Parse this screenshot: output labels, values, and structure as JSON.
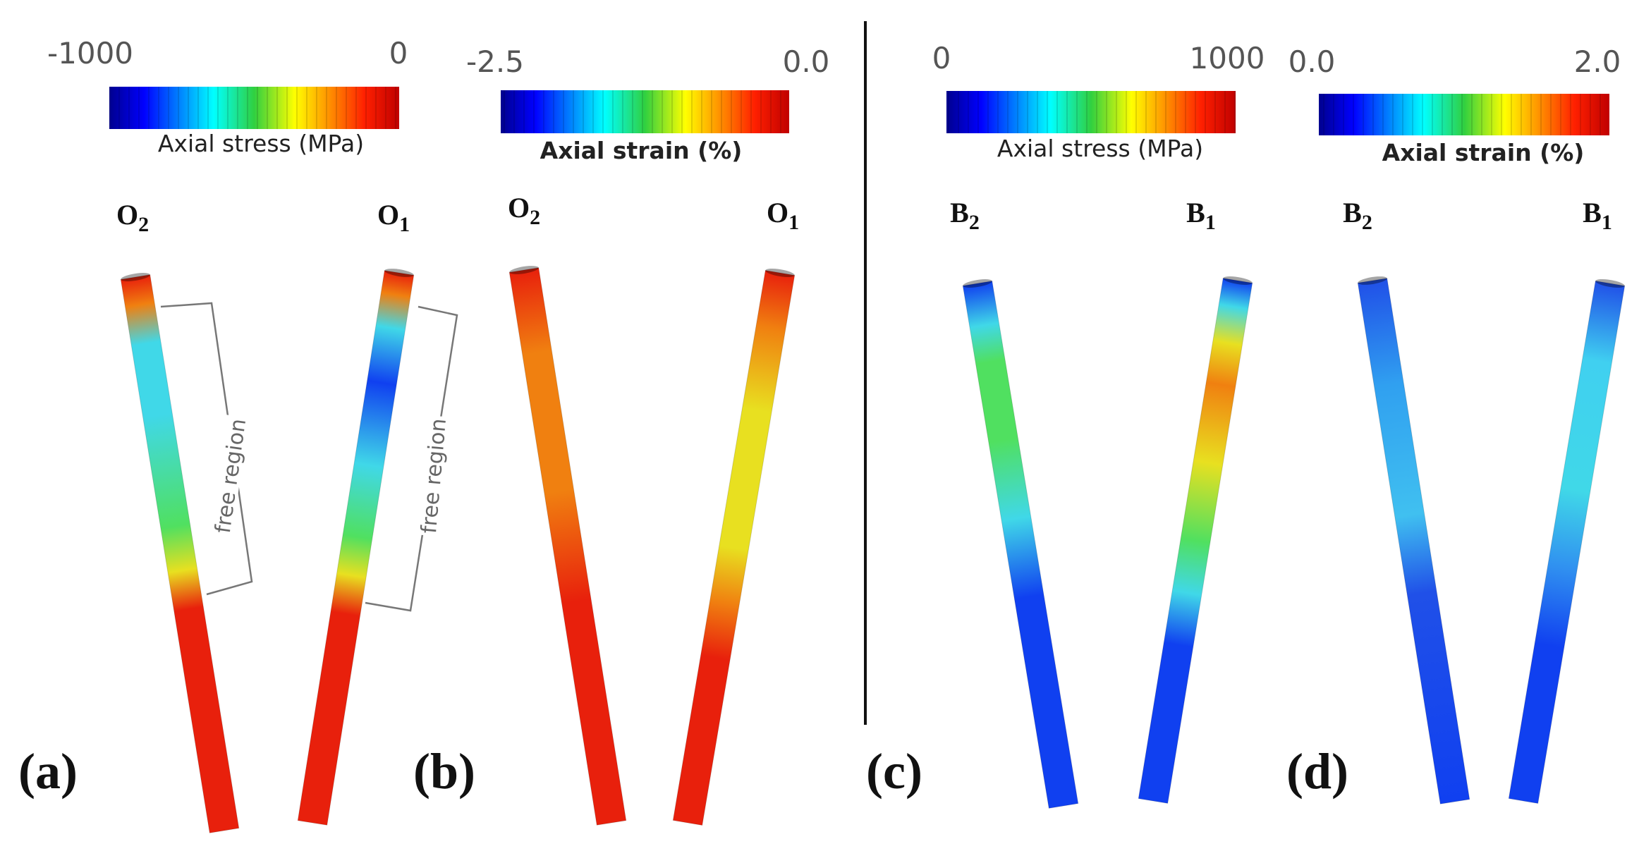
{
  "panels": [
    {
      "label": "(a)",
      "colorbar": {
        "min": "-1000",
        "max": "0",
        "title": "Axial stress (MPa)"
      },
      "struts": [
        {
          "letter": "O",
          "sub": "2"
        },
        {
          "letter": "O",
          "sub": "1"
        }
      ],
      "annotations": [
        "free region",
        "free region"
      ]
    },
    {
      "label": "(b)",
      "colorbar": {
        "min": "-2.5",
        "max": "0.0",
        "title": "Axial strain (%)"
      },
      "struts": [
        {
          "letter": "O",
          "sub": "2"
        },
        {
          "letter": "O",
          "sub": "1"
        }
      ]
    },
    {
      "label": "(c)",
      "colorbar": {
        "min": "0",
        "max": "1000",
        "title": "Axial stress (MPa)"
      },
      "struts": [
        {
          "letter": "B",
          "sub": "2"
        },
        {
          "letter": "B",
          "sub": "1"
        }
      ]
    },
    {
      "label": "(d)",
      "colorbar": {
        "min": "0.0",
        "max": "2.0",
        "title": "Axial strain (%)"
      },
      "struts": [
        {
          "letter": "B",
          "sub": "2"
        },
        {
          "letter": "B",
          "sub": "1"
        }
      ]
    }
  ]
}
